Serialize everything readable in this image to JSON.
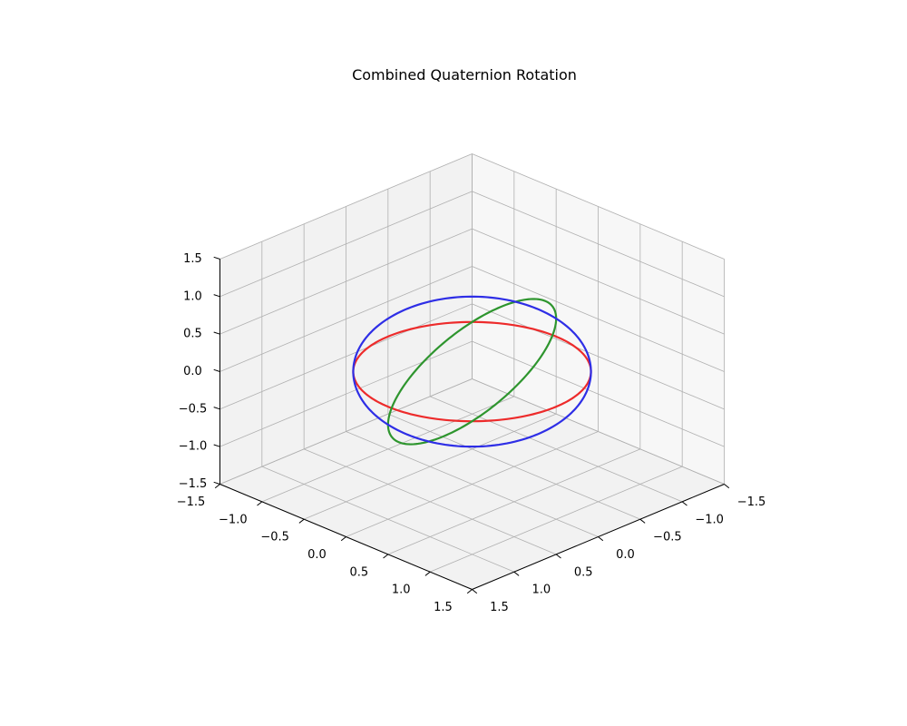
{
  "chart_data": {
    "type": "line3d",
    "title": "Combined Quaternion Rotation",
    "xlim": [
      -1.5,
      1.5
    ],
    "ylim": [
      -1.5,
      1.5
    ],
    "zlim": [
      -1.5,
      1.5
    ],
    "x_ticks": [
      "−1.5",
      "−1.0",
      "−0.5",
      "0.0",
      "0.5",
      "1.0",
      "1.5"
    ],
    "y_ticks": [
      "−1.5",
      "−1.0",
      "−0.5",
      "0.0",
      "0.5",
      "1.0",
      "1.5"
    ],
    "z_ticks": [
      "−1.5",
      "−1.0",
      "−0.5",
      "0.0",
      "0.5",
      "1.0",
      "1.5"
    ],
    "grid": true,
    "series": [
      {
        "color": "#ed2b2b",
        "shape": "unit circle",
        "axis_a": [
          1.0,
          0.0,
          0.0
        ],
        "axis_b": [
          0.0,
          1.0,
          0.0
        ]
      },
      {
        "color": "#2e952e",
        "shape": "unit circle",
        "axis_a": [
          0.7071,
          0.7071,
          0.0
        ],
        "axis_b": [
          -0.5,
          0.5,
          0.7071
        ]
      },
      {
        "color": "#2e2ee6",
        "shape": "unit circle",
        "axis_a": [
          -0.5,
          0.5,
          -0.7071
        ],
        "axis_b": [
          0.5,
          -0.5,
          -0.7071
        ]
      }
    ]
  }
}
